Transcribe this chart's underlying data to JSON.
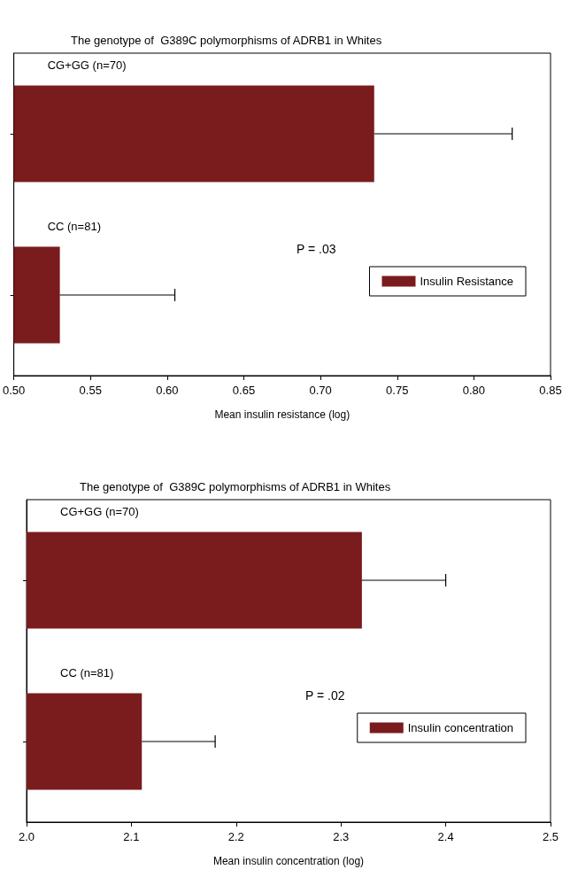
{
  "chart_data": [
    {
      "type": "bar",
      "orientation": "horizontal",
      "title": "The genotype of  G389C polymorphisms of ADRB1 in Whites",
      "xlabel": "Mean insulin resistance (log)",
      "categories": [
        "CG+GG (n=70)",
        "CC (n=81)"
      ],
      "series": [
        {
          "name": "Insulin Resistance",
          "color": "#7a1b1e",
          "values": [
            0.735,
            0.53
          ],
          "errors": [
            [
              0.735,
              0.825
            ],
            [
              0.53,
              0.605
            ]
          ]
        }
      ],
      "xlim": [
        0.5,
        0.85
      ],
      "xticks": [
        {
          "value": 0.5,
          "label": "0.50"
        },
        0.55,
        {
          "value": 0.6,
          "label": "0.60"
        },
        0.65,
        {
          "value": 0.7,
          "label": "0.70"
        },
        0.75,
        {
          "value": 0.8,
          "label": "0.80"
        },
        0.85
      ],
      "annotations": [
        "P = .03"
      ],
      "legend": "bottom right",
      "grid": false
    },
    {
      "type": "bar",
      "orientation": "horizontal",
      "title": "The genotype of  G389C polymorphisms of ADRB1 in Whites",
      "xlabel": "Mean insulin concentration (log)",
      "categories": [
        "CG+GG (n=70)",
        "CC (n=81)"
      ],
      "series": [
        {
          "name": "Insulin concentration",
          "color": "#7a1b1e",
          "values": [
            2.32,
            2.11
          ],
          "errors": [
            [
              2.32,
              2.4
            ],
            [
              2.11,
              2.18
            ]
          ]
        }
      ],
      "xlim": [
        2.0,
        2.5
      ],
      "xticks": [
        {
          "value": 2.0,
          "label": "2.0"
        },
        2.1,
        2.2,
        2.3,
        2.4,
        {
          "value": 2.5,
          "label": "2.5"
        }
      ],
      "annotations": [
        "P = .02"
      ],
      "legend": "bottom right",
      "grid": false
    }
  ]
}
